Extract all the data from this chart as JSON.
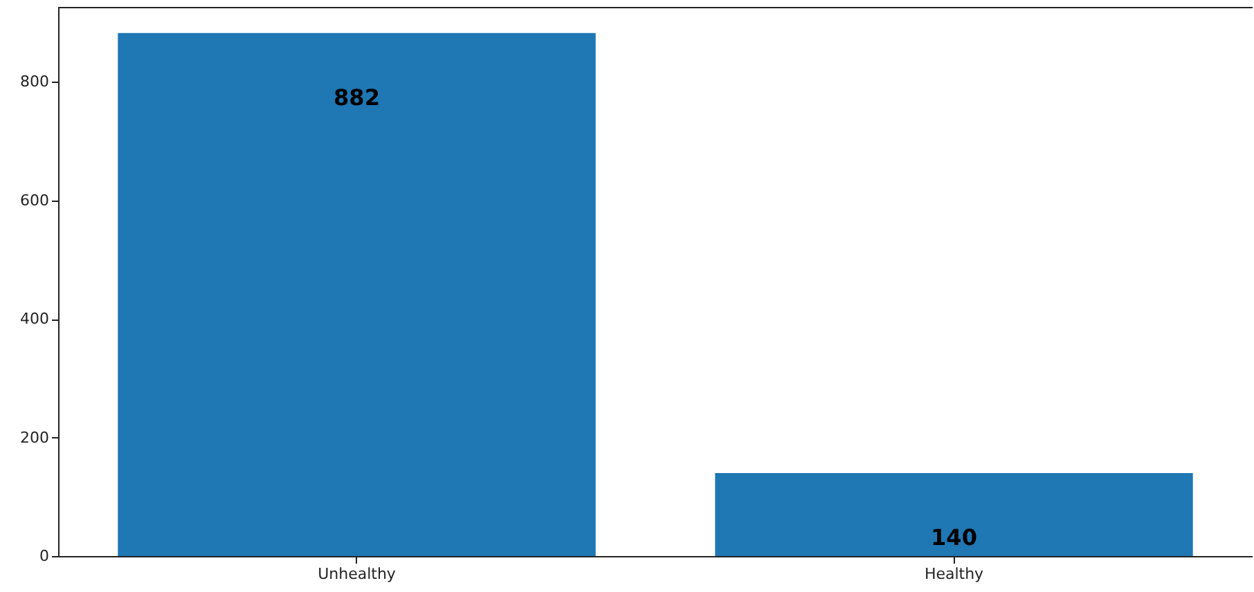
{
  "chart_data": {
    "type": "bar",
    "categories": [
      "Unhealthy",
      "Healthy"
    ],
    "values": [
      882,
      140
    ],
    "color": "#1f77b4",
    "ylim": [
      0,
      926.1
    ],
    "yticks": [
      0,
      200,
      400,
      600,
      800
    ],
    "grid": false,
    "data_labels": true
  }
}
